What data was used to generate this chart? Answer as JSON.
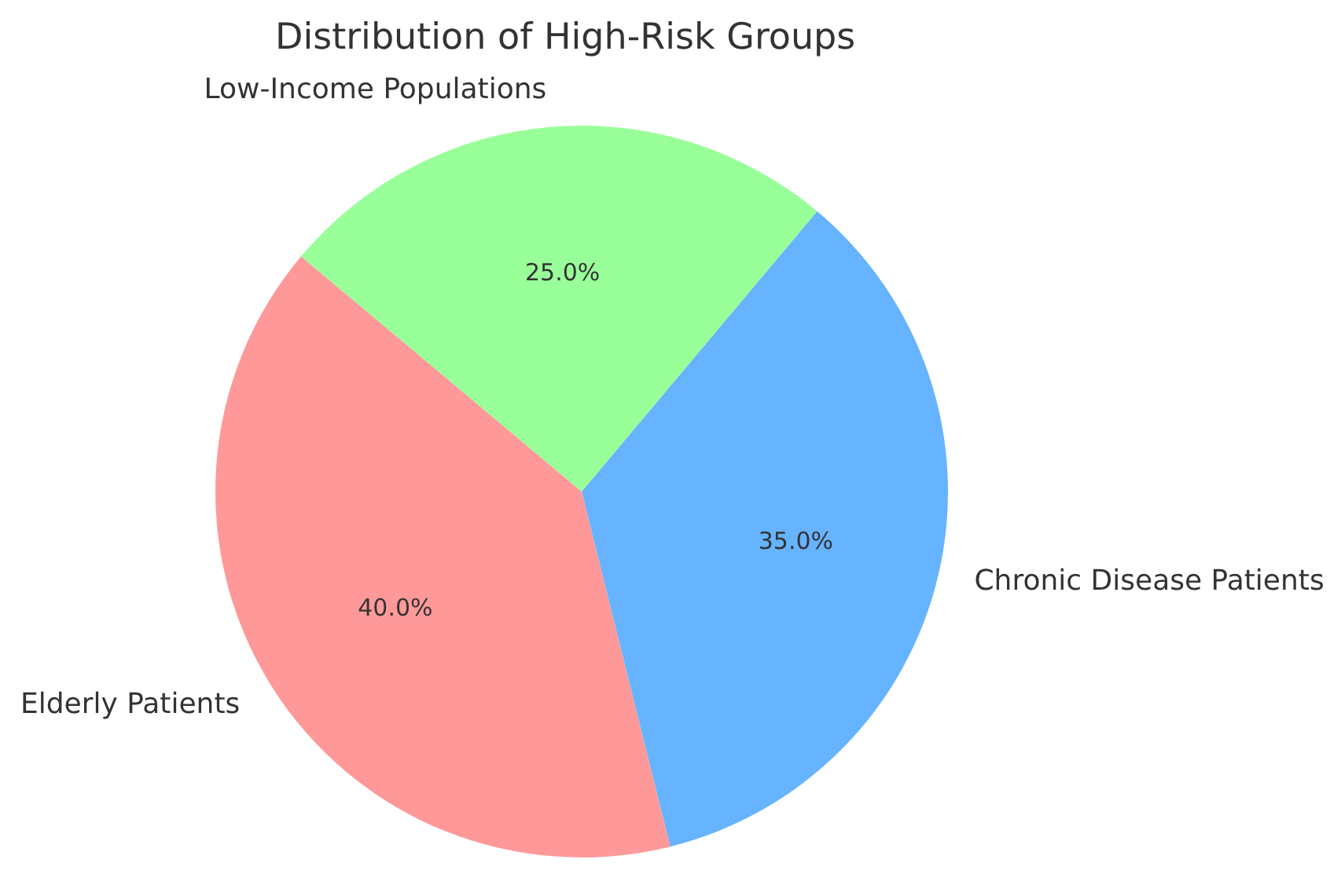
{
  "chart_data": {
    "type": "pie",
    "title": "Distribution of High-Risk Groups",
    "categories": [
      "Elderly Patients",
      "Chronic Disease Patients",
      "Low-Income Populations"
    ],
    "values": [
      40,
      35,
      25
    ],
    "colors": [
      "#ff9999",
      "#66b3ff",
      "#99ff99"
    ],
    "value_labels": [
      "40.0%",
      "35.0%",
      "25.0%"
    ]
  }
}
